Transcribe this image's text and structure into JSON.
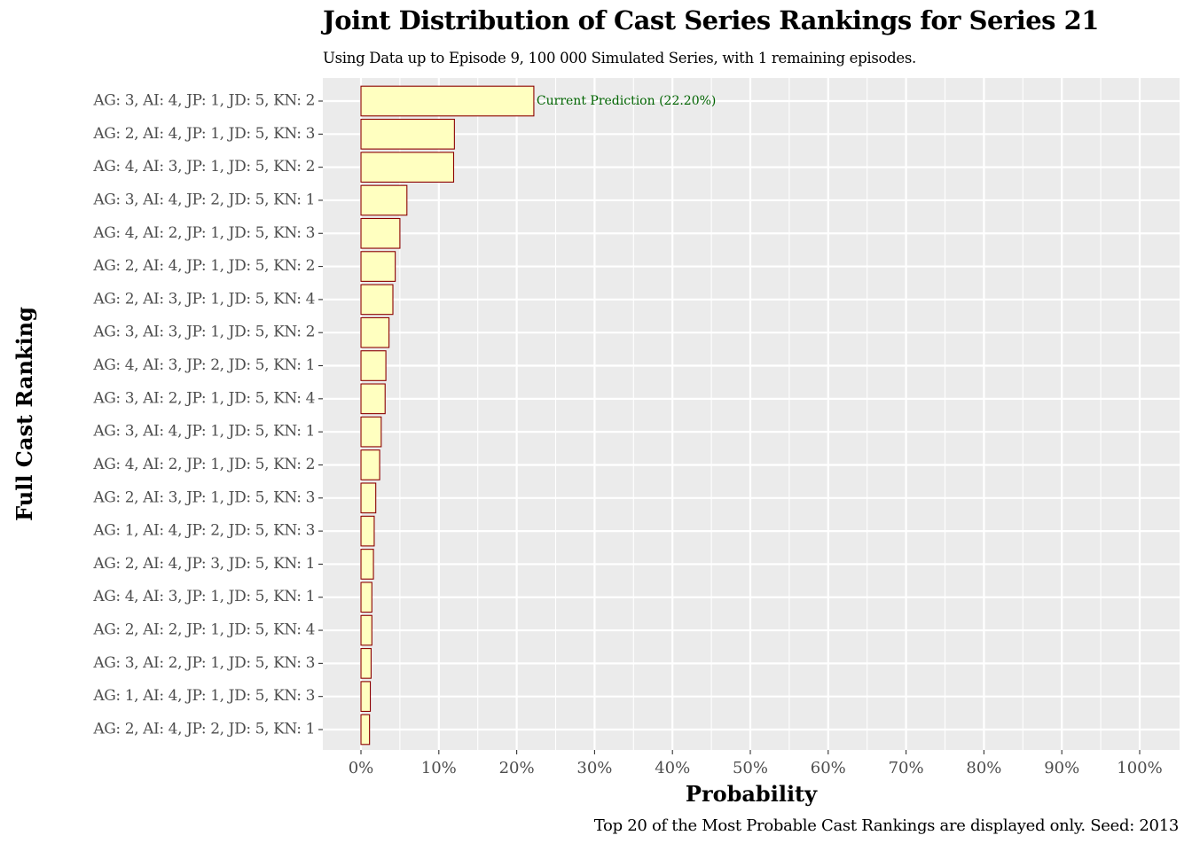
{
  "chart_data": {
    "type": "bar",
    "orientation": "horizontal",
    "title": "Joint Distribution of Cast Series Rankings for Series 21",
    "subtitle": "Using Data up to Episode 9, 100 000 Simulated Series, with 1 remaining episodes.",
    "caption": "Top 20 of the Most Probable Cast Rankings are displayed only. Seed: 2013",
    "xlabel": "Probability",
    "ylabel": "Full Cast Ranking",
    "xlim": [
      0,
      1
    ],
    "x_ticks": [
      "0%",
      "10%",
      "20%",
      "30%",
      "40%",
      "50%",
      "60%",
      "70%",
      "80%",
      "90%",
      "100%"
    ],
    "grid": true,
    "categories": [
      "AG: 3, AI: 4, JP: 1, JD: 5, KN: 2",
      "AG: 2, AI: 4, JP: 1, JD: 5, KN: 3",
      "AG: 4, AI: 3, JP: 1, JD: 5, KN: 2",
      "AG: 3, AI: 4, JP: 2, JD: 5, KN: 1",
      "AG: 4, AI: 2, JP: 1, JD: 5, KN: 3",
      "AG: 2, AI: 4, JP: 1, JD: 5, KN: 2",
      "AG: 2, AI: 3, JP: 1, JD: 5, KN: 4",
      "AG: 3, AI: 3, JP: 1, JD: 5, KN: 2",
      "AG: 4, AI: 3, JP: 2, JD: 5, KN: 1",
      "AG: 3, AI: 2, JP: 1, JD: 5, KN: 4",
      "AG: 3, AI: 4, JP: 1, JD: 5, KN: 1",
      "AG: 4, AI: 2, JP: 1, JD: 5, KN: 2",
      "AG: 2, AI: 3, JP: 1, JD: 5, KN: 3",
      "AG: 1, AI: 4, JP: 2, JD: 5, KN: 3",
      "AG: 2, AI: 4, JP: 3, JD: 5, KN: 1",
      "AG: 4, AI: 3, JP: 1, JD: 5, KN: 1",
      "AG: 2, AI: 2, JP: 1, JD: 5, KN: 4",
      "AG: 3, AI: 2, JP: 1, JD: 5, KN: 3",
      "AG: 1, AI: 4, JP: 1, JD: 5, KN: 3",
      "AG: 2, AI: 4, JP: 2, JD: 5, KN: 1"
    ],
    "values": [
      0.222,
      0.12,
      0.119,
      0.059,
      0.05,
      0.044,
      0.041,
      0.036,
      0.032,
      0.031,
      0.026,
      0.024,
      0.019,
      0.017,
      0.016,
      0.014,
      0.014,
      0.013,
      0.012,
      0.011
    ],
    "annotation": {
      "text": "Current Prediction (22.20%)",
      "category_index": 0,
      "color": "#006400"
    },
    "colors": {
      "bar_fill": "#ffffc0",
      "bar_stroke": "#8b0000",
      "panel_background": "#ebebeb",
      "grid": "#ffffff"
    }
  }
}
